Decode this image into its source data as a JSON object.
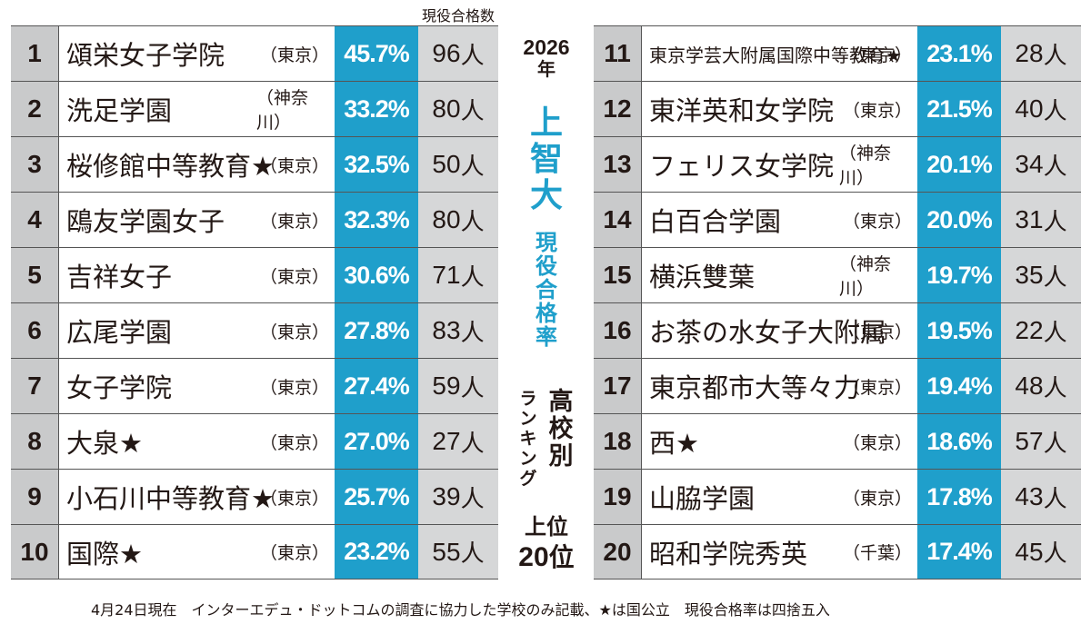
{
  "column_header": "現役合格数",
  "title": {
    "year": "2026",
    "year_suffix": "年",
    "university": "上智大",
    "metric": "現役合格率",
    "ranking_a": "高校別",
    "ranking_b": "ランキング",
    "top_label": "上位",
    "top_num": "20",
    "top_suffix": "位"
  },
  "left_rows": [
    {
      "rank": "1",
      "name": "頌栄女子学院",
      "pref": "（東京）",
      "rate": "45.7%",
      "count": "96",
      "unit": "人"
    },
    {
      "rank": "2",
      "name": "洗足学園",
      "pref": "（神奈川）",
      "rate": "33.2%",
      "count": "80",
      "unit": "人"
    },
    {
      "rank": "3",
      "name": "桜修館中等教育★",
      "pref": "（東京）",
      "rate": "32.5%",
      "count": "50",
      "unit": "人"
    },
    {
      "rank": "4",
      "name": "鴎友学園女子",
      "pref": "（東京）",
      "rate": "32.3%",
      "count": "80",
      "unit": "人"
    },
    {
      "rank": "5",
      "name": "吉祥女子",
      "pref": "（東京）",
      "rate": "30.6%",
      "count": "71",
      "unit": "人"
    },
    {
      "rank": "6",
      "name": "広尾学園",
      "pref": "（東京）",
      "rate": "27.8%",
      "count": "83",
      "unit": "人"
    },
    {
      "rank": "7",
      "name": "女子学院",
      "pref": "（東京）",
      "rate": "27.4%",
      "count": "59",
      "unit": "人"
    },
    {
      "rank": "8",
      "name": "大泉★",
      "pref": "（東京）",
      "rate": "27.0%",
      "count": "27",
      "unit": "人"
    },
    {
      "rank": "9",
      "name": "小石川中等教育★",
      "pref": "（東京）",
      "rate": "25.7%",
      "count": "39",
      "unit": "人"
    },
    {
      "rank": "10",
      "name": "国際★",
      "pref": "（東京）",
      "rate": "23.2%",
      "count": "55",
      "unit": "人"
    }
  ],
  "right_rows": [
    {
      "rank": "11",
      "name": "東京学芸大附属国際中等教育★",
      "pref": "（東京）",
      "rate": "23.1%",
      "count": "28",
      "unit": "人"
    },
    {
      "rank": "12",
      "name": "東洋英和女学院",
      "pref": "（東京）",
      "rate": "21.5%",
      "count": "40",
      "unit": "人"
    },
    {
      "rank": "13",
      "name": "フェリス女学院",
      "pref": "（神奈川）",
      "rate": "20.1%",
      "count": "34",
      "unit": "人"
    },
    {
      "rank": "14",
      "name": "白百合学園",
      "pref": "（東京）",
      "rate": "20.0%",
      "count": "31",
      "unit": "人"
    },
    {
      "rank": "15",
      "name": "横浜雙葉",
      "pref": "（神奈川）",
      "rate": "19.7%",
      "count": "35",
      "unit": "人"
    },
    {
      "rank": "16",
      "name": "お茶の水女子大附属",
      "pref": "（東京）",
      "rate": "19.5%",
      "count": "22",
      "unit": "人"
    },
    {
      "rank": "17",
      "name": "東京都市大等々力",
      "pref": "（東京）",
      "rate": "19.4%",
      "count": "48",
      "unit": "人"
    },
    {
      "rank": "18",
      "name": "西★",
      "pref": "（東京）",
      "rate": "18.6%",
      "count": "57",
      "unit": "人"
    },
    {
      "rank": "19",
      "name": "山脇学園",
      "pref": "（東京）",
      "rate": "17.8%",
      "count": "43",
      "unit": "人"
    },
    {
      "rank": "20",
      "name": "昭和学院秀英",
      "pref": "（千葉）",
      "rate": "17.4%",
      "count": "45",
      "unit": "人"
    }
  ],
  "footnote": "4月24日現在　インターエデュ・ドットコムの調査に協力した学校のみ記載、★は国公立　現役合格率は四捨五入",
  "colors": {
    "accent": "#1f9fcb",
    "rank_bg": "#c9cacb",
    "count_bg": "#d6d7d8"
  }
}
